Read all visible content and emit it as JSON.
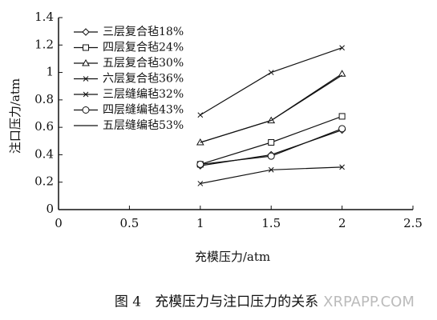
{
  "chart_data": {
    "type": "line",
    "caption": "图 4　充模压力与注口压力的关系",
    "watermark": "XRPAPP.COM",
    "x_label": "充模压力/atm",
    "y_label": "注口压力/atm",
    "x": [
      1,
      1.5,
      2
    ],
    "series": [
      {
        "name": "三层复合毡18%",
        "color": "#111111",
        "marker": "diamond",
        "values": [
          0.32,
          0.4,
          0.58
        ]
      },
      {
        "name": "四层复合毡24%",
        "color": "#111111",
        "marker": "square",
        "values": [
          0.33,
          0.49,
          0.68
        ]
      },
      {
        "name": "五层复合毡30%",
        "color": "#111111",
        "marker": "triangle",
        "values": [
          0.49,
          0.65,
          0.99
        ]
      },
      {
        "name": "六层复合毡36%",
        "color": "#111111",
        "marker": "x",
        "values": [
          0.69,
          1.0,
          1.18
        ]
      },
      {
        "name": "三层缝编毡32%",
        "color": "#111111",
        "marker": "x",
        "values": [
          0.19,
          0.29,
          0.31
        ]
      },
      {
        "name": "四层缝编毡43%",
        "color": "#111111",
        "marker": "circle",
        "values": [
          0.33,
          0.39,
          0.59
        ]
      },
      {
        "name": "五层缝编毡53%",
        "color": "#111111",
        "marker": "none",
        "values": [
          0.49,
          0.65,
          0.98
        ]
      }
    ],
    "xlim": [
      0,
      2.5
    ],
    "xticks": [
      0,
      0.5,
      1,
      1.5,
      2,
      2.5
    ],
    "ylim": [
      0,
      1.4
    ],
    "yticks": [
      0,
      0.2,
      0.4,
      0.6,
      0.8,
      1,
      1.2,
      1.4
    ]
  }
}
